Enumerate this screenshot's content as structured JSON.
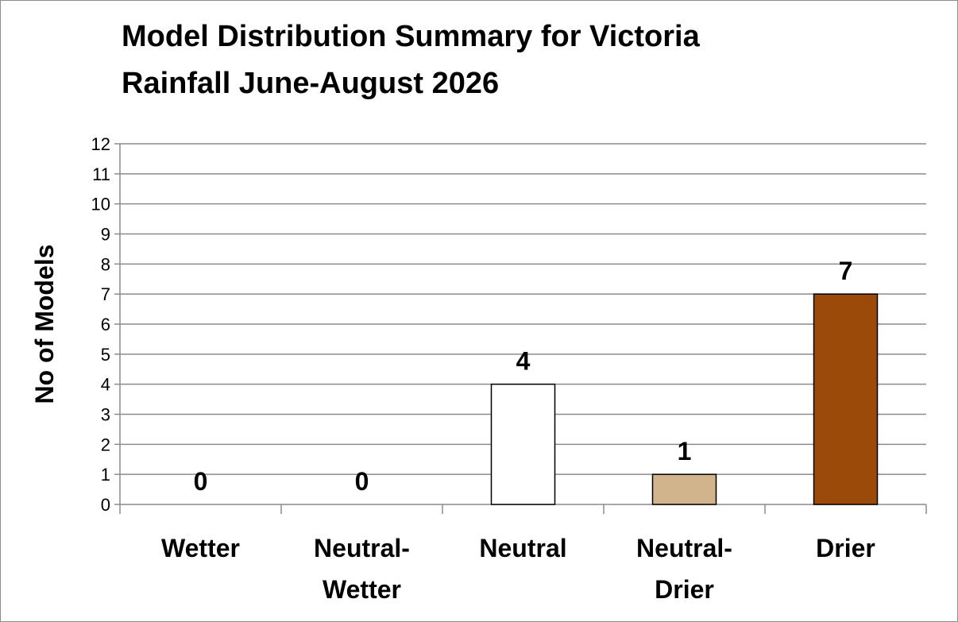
{
  "chart_data": {
    "type": "bar",
    "title_lines": [
      "Model Distribution Summary for Victoria",
      "Rainfall June-August 2026"
    ],
    "xlabel": "",
    "ylabel": "No of Models",
    "ylim": [
      0,
      12
    ],
    "y_ticks": [
      "0",
      "1",
      "2",
      "3",
      "4",
      "5",
      "6",
      "7",
      "8",
      "9",
      "10",
      "11",
      "12"
    ],
    "categories": [
      [
        "Wetter"
      ],
      [
        "Neutral-",
        "Wetter"
      ],
      [
        "Neutral"
      ],
      [
        "Neutral-",
        "Drier"
      ],
      [
        "Drier"
      ]
    ],
    "values": [
      0,
      0,
      4,
      1,
      7
    ],
    "data_labels": [
      "0",
      "0",
      "4",
      "1",
      "7"
    ],
    "bar_colors": [
      "#ffffff",
      "#ffffff",
      "#ffffff",
      "#d2b48c",
      "#9c4a0a"
    ],
    "grid": true,
    "legend": "none"
  }
}
